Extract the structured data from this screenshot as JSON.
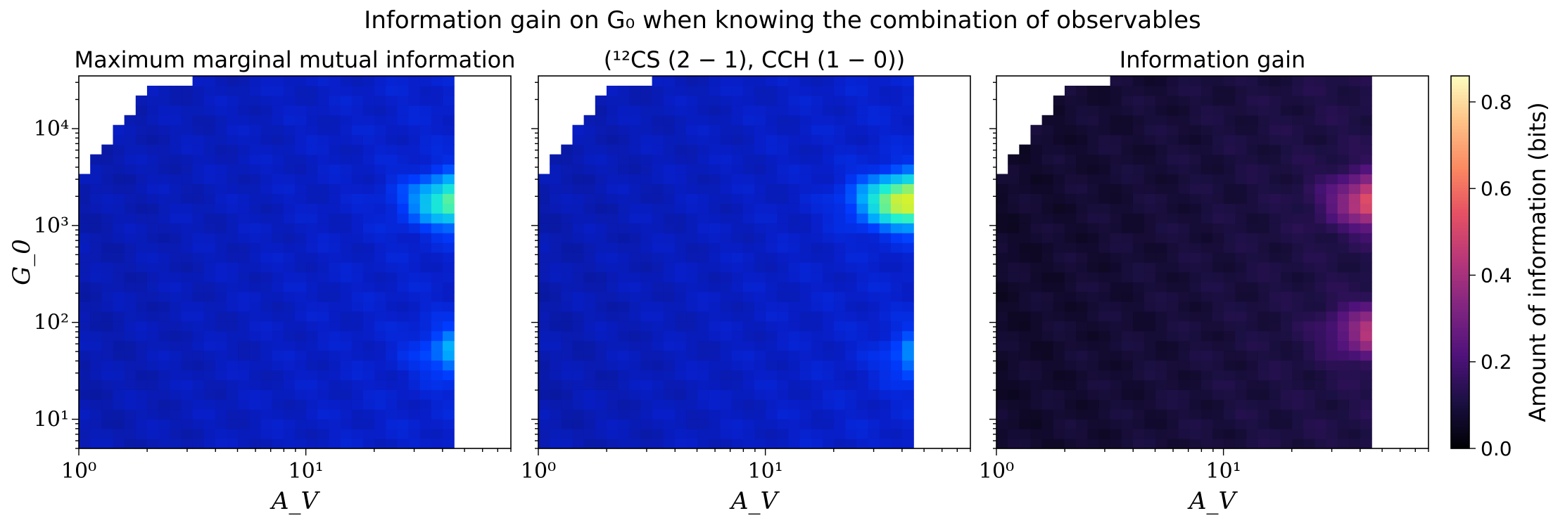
{
  "chart_data": {
    "type": "heatmap",
    "suptitle": "Information gain on G₀ when knowing the combination of observables",
    "panels": [
      {
        "title": "Maximum marginal mutual information",
        "xlabel": "A_V",
        "ylabel": "G_0",
        "colormap": "blue-cyan-yellow",
        "zrange": [
          0,
          0.9
        ],
        "hotspots": [
          {
            "A_V": 50,
            "G0": 1800,
            "value": 0.45
          },
          {
            "A_V": 60,
            "G0": 50,
            "value": 0.33
          }
        ]
      },
      {
        "title": "(¹²CS (2 − 1), CCH (1 − 0))",
        "xlabel": "A_V",
        "ylabel": "",
        "colormap": "blue-cyan-yellow",
        "zrange": [
          0,
          0.9
        ],
        "hotspots": [
          {
            "A_V": 45,
            "G0": 1800,
            "value": 0.58
          },
          {
            "A_V": 70,
            "G0": 45,
            "value": 0.45
          }
        ]
      },
      {
        "title": "Information gain",
        "xlabel": "A_V",
        "ylabel": "",
        "colormap": "magma",
        "zrange": [
          0,
          0.86
        ],
        "hotspots": [
          {
            "A_V": 55,
            "G0": 1800,
            "value": 0.55
          },
          {
            "A_V": 55,
            "G0": 80,
            "value": 0.4
          }
        ]
      }
    ],
    "x_axis": {
      "scale": "log",
      "range": [
        1,
        80
      ],
      "ticks": [
        {
          "value": 1,
          "label": "10⁰"
        },
        {
          "value": 10,
          "label": "10¹"
        }
      ]
    },
    "y_axis": {
      "scale": "log",
      "range": [
        5,
        35000
      ],
      "ticks": [
        {
          "value": 10,
          "label": "10¹"
        },
        {
          "value": 100,
          "label": "10²"
        },
        {
          "value": 1000,
          "label": "10³"
        },
        {
          "value": 10000,
          "label": "10⁴"
        }
      ]
    },
    "colorbar": {
      "label": "Amount of information (bits)",
      "range": [
        0,
        0.86
      ],
      "ticks": [
        0.0,
        0.2,
        0.4,
        0.6,
        0.8
      ],
      "tick_labels": [
        "0.0",
        "0.2",
        "0.4",
        "0.6",
        "0.8"
      ]
    }
  }
}
